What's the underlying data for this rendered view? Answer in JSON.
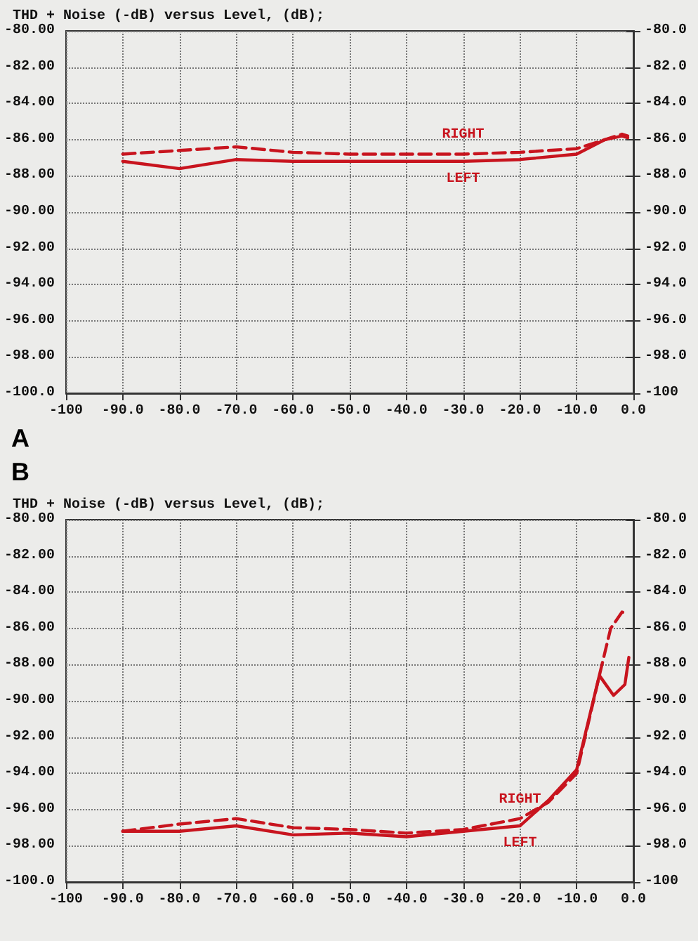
{
  "chart_data": [
    {
      "type": "line",
      "title": "THD + Noise (-dB) versus Level, (dB);",
      "annotations": [
        "A"
      ],
      "xlim": [
        -100,
        0
      ],
      "xticks": [
        {
          "value": -100,
          "label": "-100"
        },
        {
          "value": -90,
          "label": "-90.0"
        },
        {
          "value": -80,
          "label": "-80.0"
        },
        {
          "value": -70,
          "label": "-70.0"
        },
        {
          "value": -60,
          "label": "-60.0"
        },
        {
          "value": -50,
          "label": "-50.0"
        },
        {
          "value": -40,
          "label": "-40.0"
        },
        {
          "value": -30,
          "label": "-30.0"
        },
        {
          "value": -20,
          "label": "-20.0"
        },
        {
          "value": -10,
          "label": "-10.0"
        },
        {
          "value": 0,
          "label": "0.0"
        }
      ],
      "ylim": [
        -100,
        -80
      ],
      "yticks": [
        {
          "value": -100,
          "label": "-100.0"
        },
        {
          "value": -98,
          "label": "-98.00"
        },
        {
          "value": -96,
          "label": "-96.00"
        },
        {
          "value": -94,
          "label": "-94.00"
        },
        {
          "value": -92,
          "label": "-92.00"
        },
        {
          "value": -90,
          "label": "-90.00"
        },
        {
          "value": -88,
          "label": "-88.00"
        },
        {
          "value": -86,
          "label": "-86.00"
        },
        {
          "value": -84,
          "label": "-84.00"
        },
        {
          "value": -82,
          "label": "-82.00"
        },
        {
          "value": -80,
          "label": "-80.00"
        }
      ],
      "y2lim": [
        -100,
        -80
      ],
      "y2ticks": [
        {
          "value": -100,
          "label": "-100"
        },
        {
          "value": -98,
          "label": "-98.0"
        },
        {
          "value": -96,
          "label": "-96.0"
        },
        {
          "value": -94,
          "label": "-94.0"
        },
        {
          "value": -92,
          "label": "-92.0"
        },
        {
          "value": -90,
          "label": "-90.0"
        },
        {
          "value": -88,
          "label": "-88.0"
        },
        {
          "value": -86,
          "label": "-86.0"
        },
        {
          "value": -84,
          "label": "-84.0"
        },
        {
          "value": -82,
          "label": "-82.0"
        },
        {
          "value": -80,
          "label": "-80.0"
        }
      ],
      "grid": true,
      "marker": "none",
      "legend": false,
      "series": [
        {
          "name": "RIGHT",
          "color": "#c8141e",
          "line_style": "dashed",
          "x": [
            -90,
            -80,
            -70,
            -60,
            -50,
            -40,
            -30,
            -20,
            -10,
            -5,
            -2,
            -1
          ],
          "values": [
            -86.8,
            -86.6,
            -86.4,
            -86.7,
            -86.8,
            -86.8,
            -86.8,
            -86.7,
            -86.5,
            -86.0,
            -85.7,
            -85.8
          ]
        },
        {
          "name": "LEFT",
          "color": "#c8141e",
          "line_style": "solid",
          "x": [
            -90,
            -80,
            -70,
            -60,
            -50,
            -40,
            -30,
            -20,
            -10,
            -5,
            -2,
            -1
          ],
          "values": [
            -87.2,
            -87.6,
            -87.1,
            -87.2,
            -87.2,
            -87.2,
            -87.2,
            -87.1,
            -86.8,
            -86.0,
            -85.8,
            -85.9
          ]
        }
      ]
    },
    {
      "type": "line",
      "title": "THD + Noise (-dB) versus Level, (dB);",
      "annotations": [
        "B"
      ],
      "xlim": [
        -100,
        0
      ],
      "xticks": [
        {
          "value": -100,
          "label": "-100"
        },
        {
          "value": -90,
          "label": "-90.0"
        },
        {
          "value": -80,
          "label": "-80.0"
        },
        {
          "value": -70,
          "label": "-70.0"
        },
        {
          "value": -60,
          "label": "-60.0"
        },
        {
          "value": -50,
          "label": "-50.0"
        },
        {
          "value": -40,
          "label": "-40.0"
        },
        {
          "value": -30,
          "label": "-30.0"
        },
        {
          "value": -20,
          "label": "-20.0"
        },
        {
          "value": -10,
          "label": "-10.0"
        },
        {
          "value": 0,
          "label": "0.0"
        }
      ],
      "ylim": [
        -100,
        -80
      ],
      "yticks": [
        {
          "value": -100,
          "label": "-100.0"
        },
        {
          "value": -98,
          "label": "-98.00"
        },
        {
          "value": -96,
          "label": "-96.00"
        },
        {
          "value": -94,
          "label": "-94.00"
        },
        {
          "value": -92,
          "label": "-92.00"
        },
        {
          "value": -90,
          "label": "-90.00"
        },
        {
          "value": -88,
          "label": "-88.00"
        },
        {
          "value": -86,
          "label": "-86.00"
        },
        {
          "value": -84,
          "label": "-84.00"
        },
        {
          "value": -82,
          "label": "-82.00"
        },
        {
          "value": -80,
          "label": "-80.00"
        }
      ],
      "y2lim": [
        -100,
        -80
      ],
      "y2ticks": [
        {
          "value": -100,
          "label": "-100"
        },
        {
          "value": -98,
          "label": "-98.0"
        },
        {
          "value": -96,
          "label": "-96.0"
        },
        {
          "value": -94,
          "label": "-94.0"
        },
        {
          "value": -92,
          "label": "-92.0"
        },
        {
          "value": -90,
          "label": "-90.0"
        },
        {
          "value": -88,
          "label": "-88.0"
        },
        {
          "value": -86,
          "label": "-86.0"
        },
        {
          "value": -84,
          "label": "-84.0"
        },
        {
          "value": -82,
          "label": "-82.0"
        },
        {
          "value": -80,
          "label": "-80.0"
        }
      ],
      "grid": true,
      "marker": "none",
      "legend": false,
      "series": [
        {
          "name": "RIGHT",
          "color": "#c8141e",
          "line_style": "dashed",
          "x": [
            -90,
            -80,
            -70,
            -60,
            -50,
            -40,
            -30,
            -20,
            -15,
            -10,
            -6,
            -4,
            -2,
            -1
          ],
          "values": [
            -97.2,
            -96.8,
            -96.5,
            -97.0,
            -97.1,
            -97.3,
            -97.1,
            -96.5,
            -95.6,
            -94.0,
            -88.6,
            -86.0,
            -85.1,
            -85.2
          ]
        },
        {
          "name": "LEFT",
          "color": "#c8141e",
          "line_style": "solid",
          "x": [
            -90,
            -80,
            -70,
            -60,
            -50,
            -40,
            -30,
            -20,
            -15,
            -10,
            -6,
            -3.5,
            -1.5,
            -0.8
          ],
          "values": [
            -97.2,
            -97.2,
            -96.9,
            -97.4,
            -97.3,
            -97.5,
            -97.2,
            -96.9,
            -95.5,
            -93.8,
            -88.6,
            -89.7,
            -89.1,
            -87.6
          ]
        }
      ]
    }
  ]
}
